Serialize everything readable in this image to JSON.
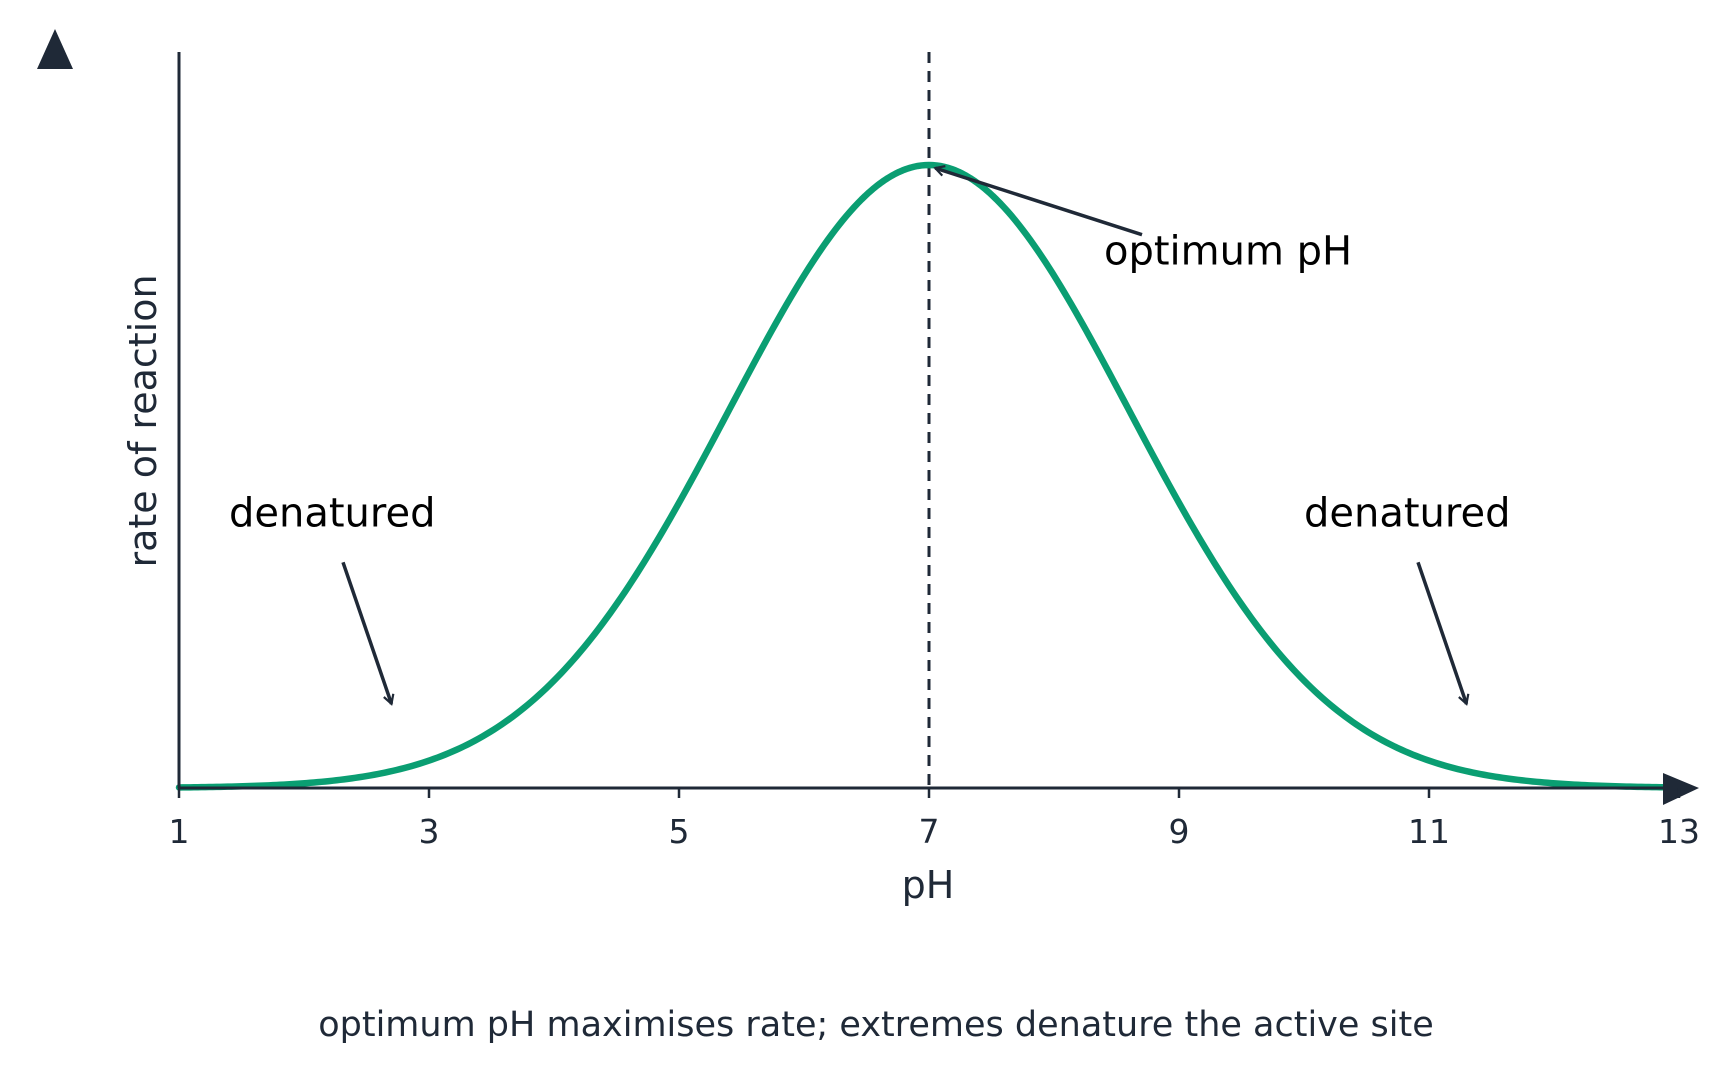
{
  "chart_data": {
    "type": "line",
    "title": "",
    "xlabel": "pH",
    "ylabel": "rate of reaction",
    "xlim": [
      1,
      13
    ],
    "ylim": [
      0,
      1.12
    ],
    "x_ticks": [
      1,
      3,
      5,
      7,
      9,
      11,
      13
    ],
    "y_ticks": [],
    "grid": false,
    "series": [
      {
        "curve": "gaussian",
        "peak_x": 7,
        "peak_y": 1.0,
        "sigma": 1.6,
        "color": "#0a9e72"
      }
    ],
    "reference_line": {
      "x": 7,
      "style": "dashed",
      "color": "#1f2937"
    },
    "annotations": [
      {
        "text": "optimum pH",
        "text_x": 8.4,
        "text_y": 0.84,
        "point_x": 7.05,
        "point_y": 0.995
      },
      {
        "text": "denatured",
        "text_x": 1.4,
        "text_y": 0.42,
        "point_x": 2.7,
        "point_y": 0.135
      },
      {
        "text": "denatured",
        "text_x": 10.0,
        "text_y": 0.42,
        "point_x": 11.3,
        "point_y": 0.135
      }
    ],
    "caption": "optimum pH maximises rate; extremes denature the active site",
    "axis_color": "#1f2937"
  }
}
